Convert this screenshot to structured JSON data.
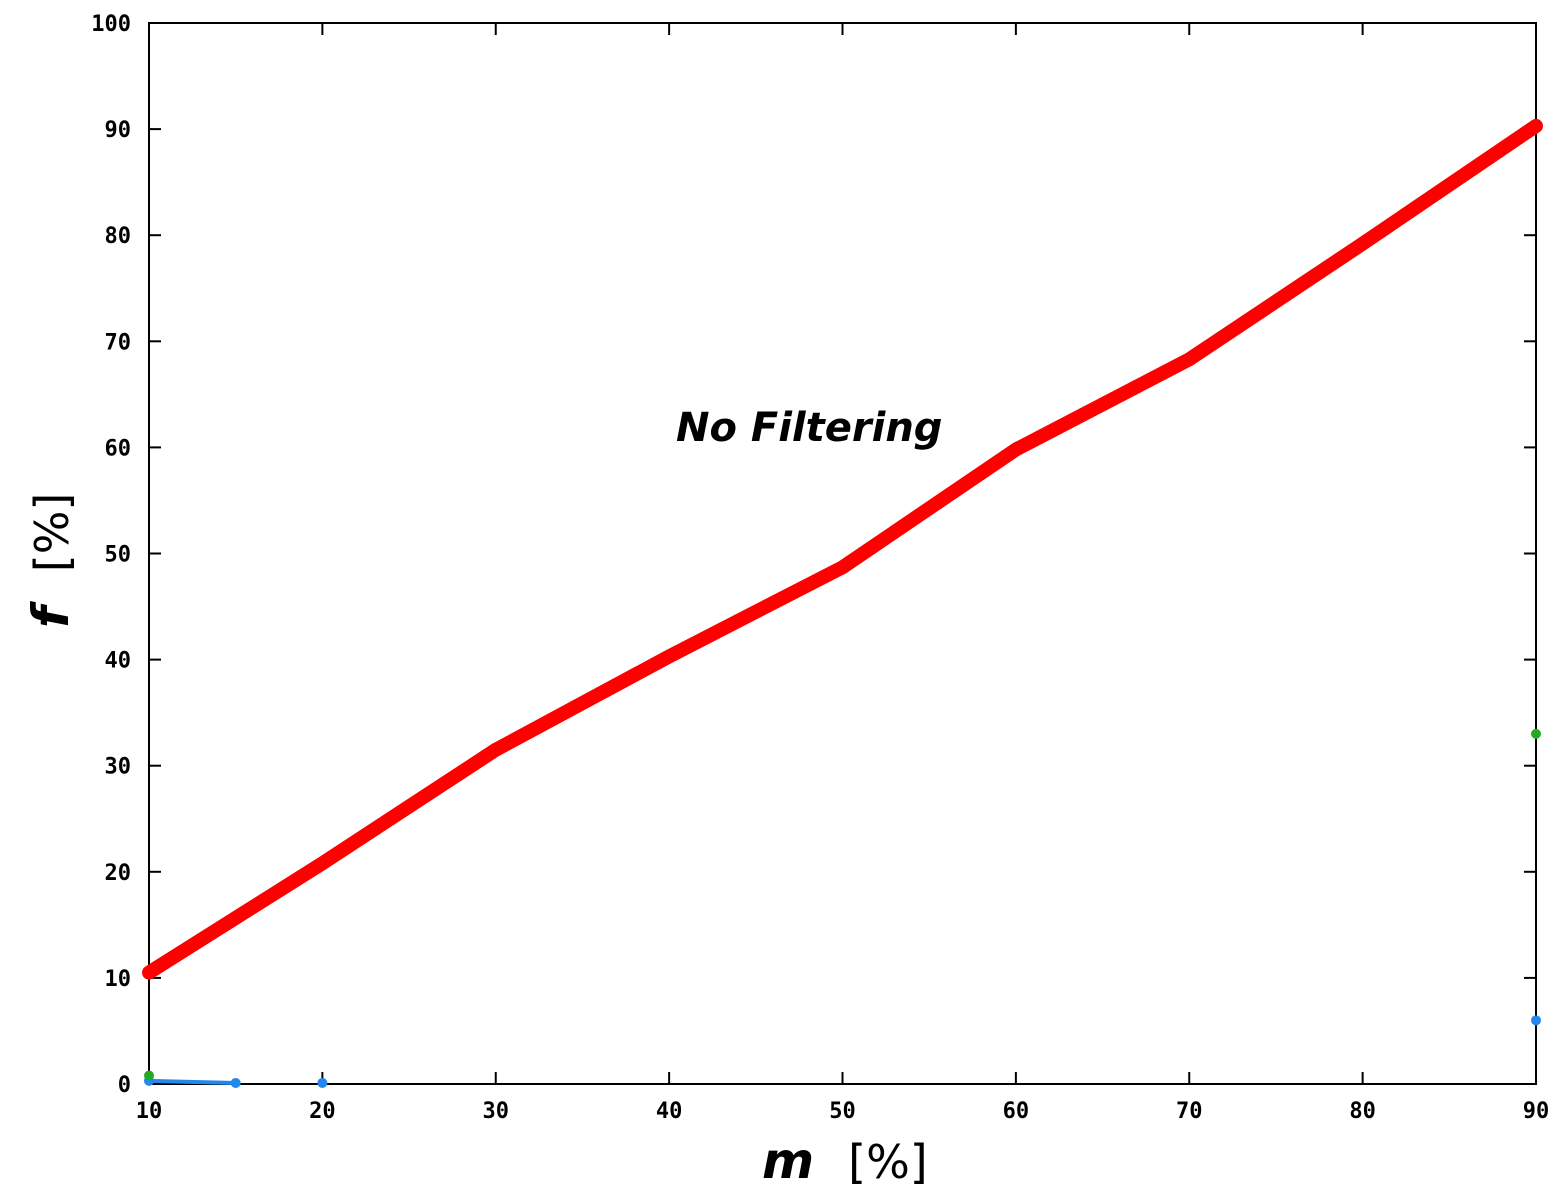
{
  "chart_data": {
    "type": "line",
    "xlabel_var": "m",
    "xlabel_unit": "[%]",
    "ylabel_var": "f",
    "ylabel_unit": "[%]",
    "annotation": "No Filtering",
    "xlim": [
      10,
      90
    ],
    "ylim": [
      0,
      100
    ],
    "xticks": [
      10,
      20,
      30,
      40,
      50,
      60,
      70,
      80,
      90
    ],
    "yticks": [
      0,
      10,
      20,
      30,
      40,
      50,
      60,
      70,
      80,
      90,
      100
    ],
    "xtick_labels": [
      "10",
      "20",
      "30",
      "40",
      "50",
      "60",
      "70",
      "80",
      "90"
    ],
    "ytick_labels": [
      "0",
      "10",
      "20",
      "30",
      "40",
      "50",
      "60",
      "70",
      "80",
      "90",
      "100"
    ],
    "grid": false,
    "series": [
      {
        "color": "#ff0000",
        "x": [
          10,
          20,
          30,
          40,
          50,
          60,
          70,
          80,
          90
        ],
        "y": [
          10.5,
          20.8,
          31.5,
          40.3,
          48.7,
          59.8,
          68.3,
          79.2,
          90.3
        ]
      },
      {
        "color": "#2288ee",
        "x": [
          10,
          15,
          20,
          90
        ],
        "y": [
          0.3,
          0.1,
          0.1,
          6.0
        ]
      },
      {
        "color": "#22aa22",
        "x": [
          10,
          90
        ],
        "y": [
          0.8,
          33.0
        ]
      }
    ]
  }
}
